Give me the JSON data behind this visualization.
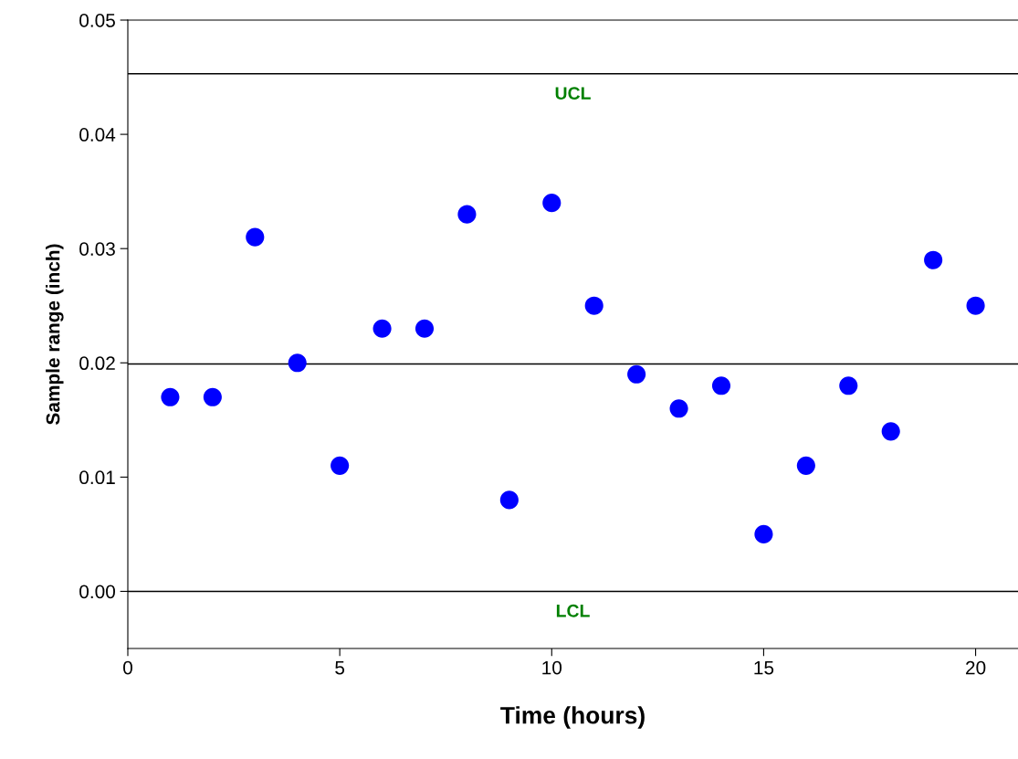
{
  "chart_data": {
    "type": "scatter",
    "xlabel": "Time (hours)",
    "ylabel": "Sample range (inch)",
    "x": [
      1,
      2,
      3,
      4,
      5,
      6,
      7,
      8,
      9,
      10,
      11,
      12,
      13,
      14,
      15,
      16,
      17,
      18,
      19,
      20
    ],
    "series": [
      {
        "color": "#0000ff",
        "values": [
          0.017,
          0.017,
          0.031,
          0.02,
          0.011,
          0.023,
          0.023,
          0.033,
          0.008,
          0.034,
          0.025,
          0.019,
          0.016,
          0.018,
          0.005,
          0.011,
          0.018,
          0.014,
          0.029,
          0.025
        ]
      }
    ],
    "marker": "circle",
    "grid": false,
    "xlim": [
      0,
      21
    ],
    "xticks": [
      0,
      5,
      10,
      15,
      20
    ],
    "ylim": [
      -0.005,
      0.05
    ],
    "yticks": [
      {
        "value": 0,
        "label": "0.00"
      },
      {
        "value": 0.01,
        "label": "0.01"
      },
      {
        "value": 0.02,
        "label": "0.02"
      },
      {
        "value": 0.03,
        "label": "0.03"
      },
      {
        "value": 0.04,
        "label": "0.04"
      },
      {
        "value": 0.05,
        "label": "0.05"
      }
    ],
    "ref_lines": [
      {
        "axis": "y",
        "value": 0.0453,
        "label": "UCL",
        "color": "#000000"
      },
      {
        "axis": "y",
        "value": 0.0199,
        "color": "#000000"
      },
      {
        "axis": "y",
        "value": 0,
        "label": "LCL",
        "color": "#000000"
      }
    ]
  }
}
